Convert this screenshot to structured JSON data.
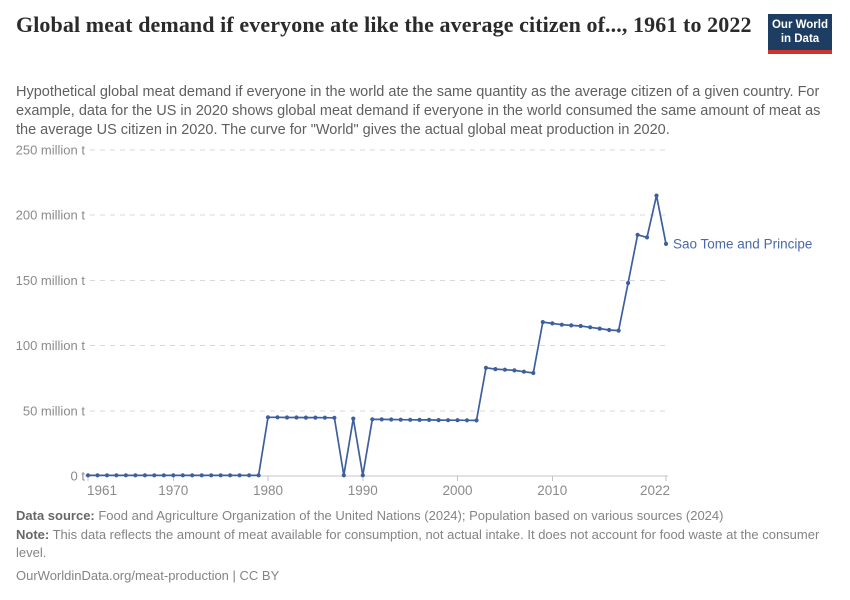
{
  "header": {
    "title": "Global meat demand if everyone ate like the average citizen of..., 1961 to 2022",
    "logo_line1": "Our World",
    "logo_line2": "in Data",
    "logo_bg": "#1d3d63",
    "logo_bar": "#cf352e"
  },
  "subtitle": "Hypothetical global meat demand if everyone in the world ate the same quantity as the average citizen of a given country. For example, data for the US in 2020 shows global meat demand if everyone in the world consumed the same amount of meat as the average US citizen in 2020. The curve for \"World\" gives the actual global meat production in 2020.",
  "chart_data": {
    "type": "line",
    "title": "Global meat demand if everyone ate like the average citizen of..., 1961 to 2022",
    "xlabel": "",
    "ylabel": "million tonnes",
    "xlim": [
      1961,
      2022
    ],
    "ylim": [
      0,
      250
    ],
    "grid": "dashed horizontal",
    "legend_position": "end-of-line label",
    "line_color": "#3e5f9e",
    "label_color": "#4a69a8",
    "grid_color": "#d9d9d9",
    "axis_color": "#c4c4c4",
    "tick_text_color": "#8b8b8b",
    "y_ticks": [
      {
        "value": 0,
        "label": "0 t"
      },
      {
        "value": 50,
        "label": "50 million t"
      },
      {
        "value": 100,
        "label": "100 million t"
      },
      {
        "value": 150,
        "label": "150 million t"
      },
      {
        "value": 200,
        "label": "200 million t"
      },
      {
        "value": 250,
        "label": "250 million t"
      }
    ],
    "x_ticks": [
      1961,
      1970,
      1980,
      1990,
      2000,
      2010,
      2022
    ],
    "series": [
      {
        "name": "Sao Tome and Principe",
        "x": [
          1961,
          1962,
          1963,
          1964,
          1965,
          1966,
          1967,
          1968,
          1969,
          1970,
          1971,
          1972,
          1973,
          1974,
          1975,
          1976,
          1977,
          1978,
          1979,
          1980,
          1981,
          1982,
          1983,
          1984,
          1985,
          1986,
          1987,
          1988,
          1989,
          1990,
          1991,
          1992,
          1993,
          1994,
          1995,
          1996,
          1997,
          1998,
          1999,
          2000,
          2001,
          2002,
          2003,
          2004,
          2005,
          2006,
          2007,
          2008,
          2009,
          2010,
          2011,
          2012,
          2013,
          2014,
          2015,
          2016,
          2017,
          2018,
          2019,
          2020,
          2021,
          2022
        ],
        "values": [
          0.5,
          0.5,
          0.5,
          0.5,
          0.5,
          0.5,
          0.5,
          0.5,
          0.5,
          0.5,
          0.5,
          0.5,
          0.5,
          0.5,
          0.5,
          0.5,
          0.5,
          0.5,
          0.5,
          45,
          45,
          44.9,
          44.9,
          44.8,
          44.8,
          44.7,
          44.6,
          0.5,
          44,
          0.5,
          43.5,
          43.4,
          43.3,
          43.2,
          43.1,
          43,
          43,
          42.9,
          42.8,
          42.8,
          42.7,
          42.6,
          83,
          82,
          81.5,
          81,
          80,
          79,
          118,
          117,
          116,
          115.5,
          115,
          114,
          113,
          112,
          111.5,
          148,
          185,
          183,
          215,
          178
        ]
      }
    ]
  },
  "footer": {
    "data_source_label": "Data source:",
    "data_source_text": " Food and Agriculture Organization of the United Nations (2024); Population based on various sources (2024)",
    "note_label": "Note:",
    "note_text": " This data reflects the amount of meat available for consumption, not actual intake. It does not account for food waste at the consumer level.",
    "citation": "OurWorldinData.org/meat-production | CC BY"
  }
}
